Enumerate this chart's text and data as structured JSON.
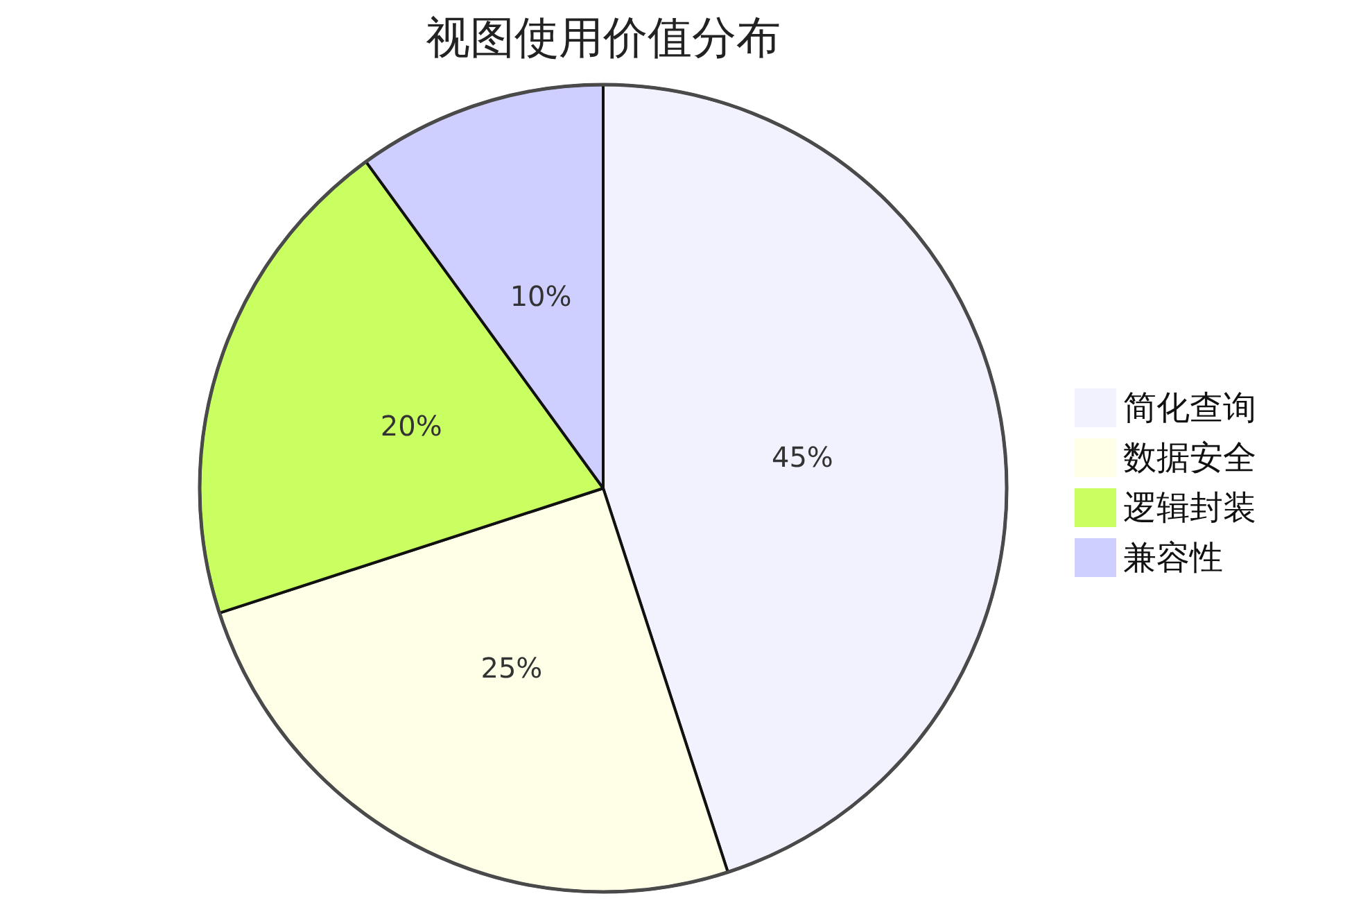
{
  "chart_data": {
    "type": "pie",
    "title": "视图使用价值分布",
    "categories": [
      "简化查询",
      "数据安全",
      "逻辑封装",
      "兼容性"
    ],
    "values": [
      45,
      25,
      20,
      10
    ],
    "colors": [
      "#f2f2ff",
      "#ffffe8",
      "#caff62",
      "#cecfff"
    ],
    "value_labels": [
      "45%",
      "25%",
      "20%",
      "10%"
    ],
    "legend": "right"
  }
}
